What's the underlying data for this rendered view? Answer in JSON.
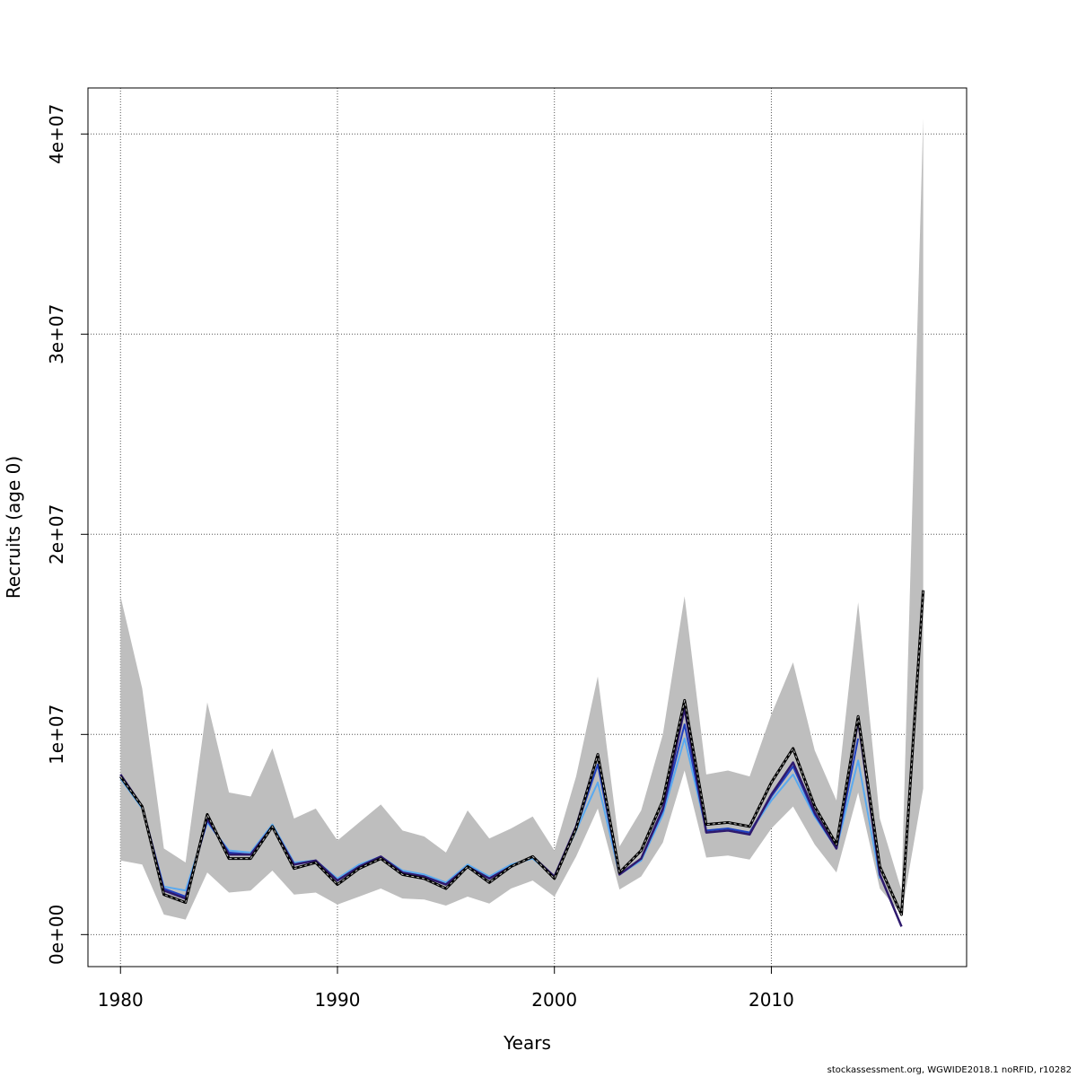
{
  "chart_data": {
    "type": "line",
    "title": "",
    "xlabel": "Years",
    "ylabel": "Recruits (age 0)",
    "xlim": [
      1978.5,
      2019.0
    ],
    "ylim": [
      -1600000,
      42300000
    ],
    "x_ticks": [
      1980,
      1990,
      2000,
      2010
    ],
    "x_tick_labels": [
      "1980",
      "1990",
      "2000",
      "2010"
    ],
    "y_ticks": [
      0,
      10000000,
      20000000,
      30000000,
      40000000
    ],
    "y_tick_labels": [
      "0e+00",
      "1e+07",
      "2e+07",
      "3e+07",
      "4e+07"
    ],
    "grid": true,
    "legend": "none",
    "colors": {
      "band": "#bebebe",
      "estimate": "#000000",
      "retro_dark": "#2e1a6e",
      "retro_blue": "#1f3fbf",
      "retro_light": "#5aaaf0",
      "grid": "#555555"
    },
    "confidence_band": {
      "x": [
        1980,
        1981,
        1982,
        1983,
        1984,
        1985,
        1986,
        1987,
        1988,
        1989,
        1990,
        1991,
        1992,
        1993,
        1994,
        1995,
        1996,
        1997,
        1998,
        1999,
        2000,
        2001,
        2002,
        2003,
        2004,
        2005,
        2006,
        2007,
        2008,
        2009,
        2010,
        2011,
        2012,
        2013,
        2014,
        2015,
        2016,
        2017
      ],
      "lower": [
        3700000,
        3500000,
        1000000,
        750000,
        3100000,
        2100000,
        2200000,
        3200000,
        2000000,
        2100000,
        1500000,
        1900000,
        2300000,
        1800000,
        1750000,
        1450000,
        1900000,
        1550000,
        2300000,
        2700000,
        1900000,
        3900000,
        6300000,
        2250000,
        2900000,
        4600000,
        8200000,
        3850000,
        3950000,
        3750000,
        5300000,
        6400000,
        4500000,
        3100000,
        7100000,
        2300000,
        1000000,
        7300000
      ],
      "upper": [
        16900000,
        12300000,
        4300000,
        3600000,
        11600000,
        7100000,
        6900000,
        9300000,
        5800000,
        6300000,
        4700000,
        5600000,
        6500000,
        5200000,
        4900000,
        4100000,
        6200000,
        4800000,
        5300000,
        5900000,
        4200000,
        7900000,
        12900000,
        4400000,
        6200000,
        10000000,
        16900000,
        8000000,
        8200000,
        7900000,
        11000000,
        13600000,
        9200000,
        6700000,
        16600000,
        5800000,
        2200000,
        40800000
      ]
    },
    "series": [
      {
        "x": [
          1980,
          1981,
          1982,
          1983,
          1984,
          1985,
          1986,
          1987,
          1988,
          1989,
          1990,
          1991,
          1992,
          1993,
          1994,
          1995,
          1996,
          1997,
          1998,
          1999,
          2000,
          2001,
          2002,
          2003,
          2004,
          2005,
          2006,
          2007,
          2008,
          2009,
          2010,
          2011,
          2012,
          2013,
          2014,
          2015,
          2016,
          2017
        ],
        "values": [
          7900000,
          6400000,
          2000000,
          1600000,
          6000000,
          3800000,
          3800000,
          5400000,
          3300000,
          3600000,
          2500000,
          3300000,
          3800000,
          3000000,
          2800000,
          2300000,
          3400000,
          2600000,
          3400000,
          3900000,
          2800000,
          5300000,
          9000000,
          3100000,
          4200000,
          6700000,
          11700000,
          5500000,
          5600000,
          5400000,
          7600000,
          9300000,
          6400000,
          4500000,
          10900000,
          3400000,
          1000000,
          17200000
        ],
        "style": "dashed-on-black"
      },
      {
        "x": [
          1980,
          1981,
          1982,
          1983,
          1984,
          1985,
          1986,
          1987,
          1988,
          1989,
          1990,
          1991,
          1992,
          1993,
          1994,
          1995,
          1996,
          1997,
          1998,
          1999,
          2000,
          2001,
          2002,
          2003,
          2004,
          2005,
          2006,
          2007,
          2008,
          2009,
          2010,
          2011,
          2012,
          2013,
          2014,
          2015,
          2016
        ],
        "values": [
          8000000,
          6400000,
          2200000,
          1800000,
          5800000,
          4000000,
          4000000,
          5400000,
          3500000,
          3700000,
          2700000,
          3400000,
          3900000,
          3100000,
          2900000,
          2500000,
          3400000,
          2800000,
          3400000,
          3900000,
          2900000,
          5400000,
          9000000,
          3000000,
          3800000,
          6300000,
          11300000,
          5100000,
          5200000,
          5000000,
          7000000,
          8600000,
          6100000,
          4300000,
          10700000,
          3000000,
          400000
        ],
        "style": "dark"
      },
      {
        "x": [
          1980,
          1981,
          1982,
          1983,
          1984,
          1985,
          1986,
          1987,
          1988,
          1989,
          1990,
          1991,
          1992,
          1993,
          1994,
          1995,
          1996,
          1997,
          1998,
          1999,
          2000,
          2001,
          2002,
          2003,
          2004,
          2005,
          2006,
          2007,
          2008,
          2009,
          2010,
          2011,
          2012,
          2013,
          2014,
          2015
        ],
        "values": [
          7800000,
          6300000,
          2400000,
          2200000,
          5600000,
          4200000,
          4100000,
          5500000,
          3600000,
          3700000,
          2800000,
          3500000,
          3900000,
          3200000,
          3000000,
          2600000,
          3500000,
          2900000,
          3500000,
          3800000,
          2900000,
          5200000,
          7600000,
          3000000,
          3700000,
          6000000,
          9800000,
          5200000,
          5300000,
          5100000,
          6700000,
          8000000,
          5900000,
          4300000,
          8700000,
          2800000
        ],
        "style": "light"
      },
      {
        "x": [
          1980,
          1981,
          1982,
          1983,
          1984,
          1985,
          1986,
          1987,
          1988,
          1989,
          1990,
          1991,
          1992,
          1993,
          1994,
          1995,
          1996,
          1997,
          1998,
          1999,
          2000,
          2001,
          2002,
          2003,
          2004,
          2005,
          2006,
          2007,
          2008,
          2009,
          2010,
          2011,
          2012,
          2013,
          2014
        ],
        "values": [
          7900000,
          6400000,
          2300000,
          1900000,
          5700000,
          4100000,
          4000000,
          5400000,
          3500000,
          3700000,
          2700000,
          3400000,
          3900000,
          3100000,
          2900000,
          2500000,
          3400000,
          2800000,
          3400000,
          3900000,
          2900000,
          5300000,
          8500000,
          3000000,
          3800000,
          6200000,
          10500000,
          5200000,
          5300000,
          5100000,
          6900000,
          8400000,
          6000000,
          4300000,
          9800000
        ],
        "style": "blue"
      }
    ]
  },
  "footer": {
    "credit": "stockassessment.org, WGWIDE2018.1 noRFID, r10282"
  }
}
